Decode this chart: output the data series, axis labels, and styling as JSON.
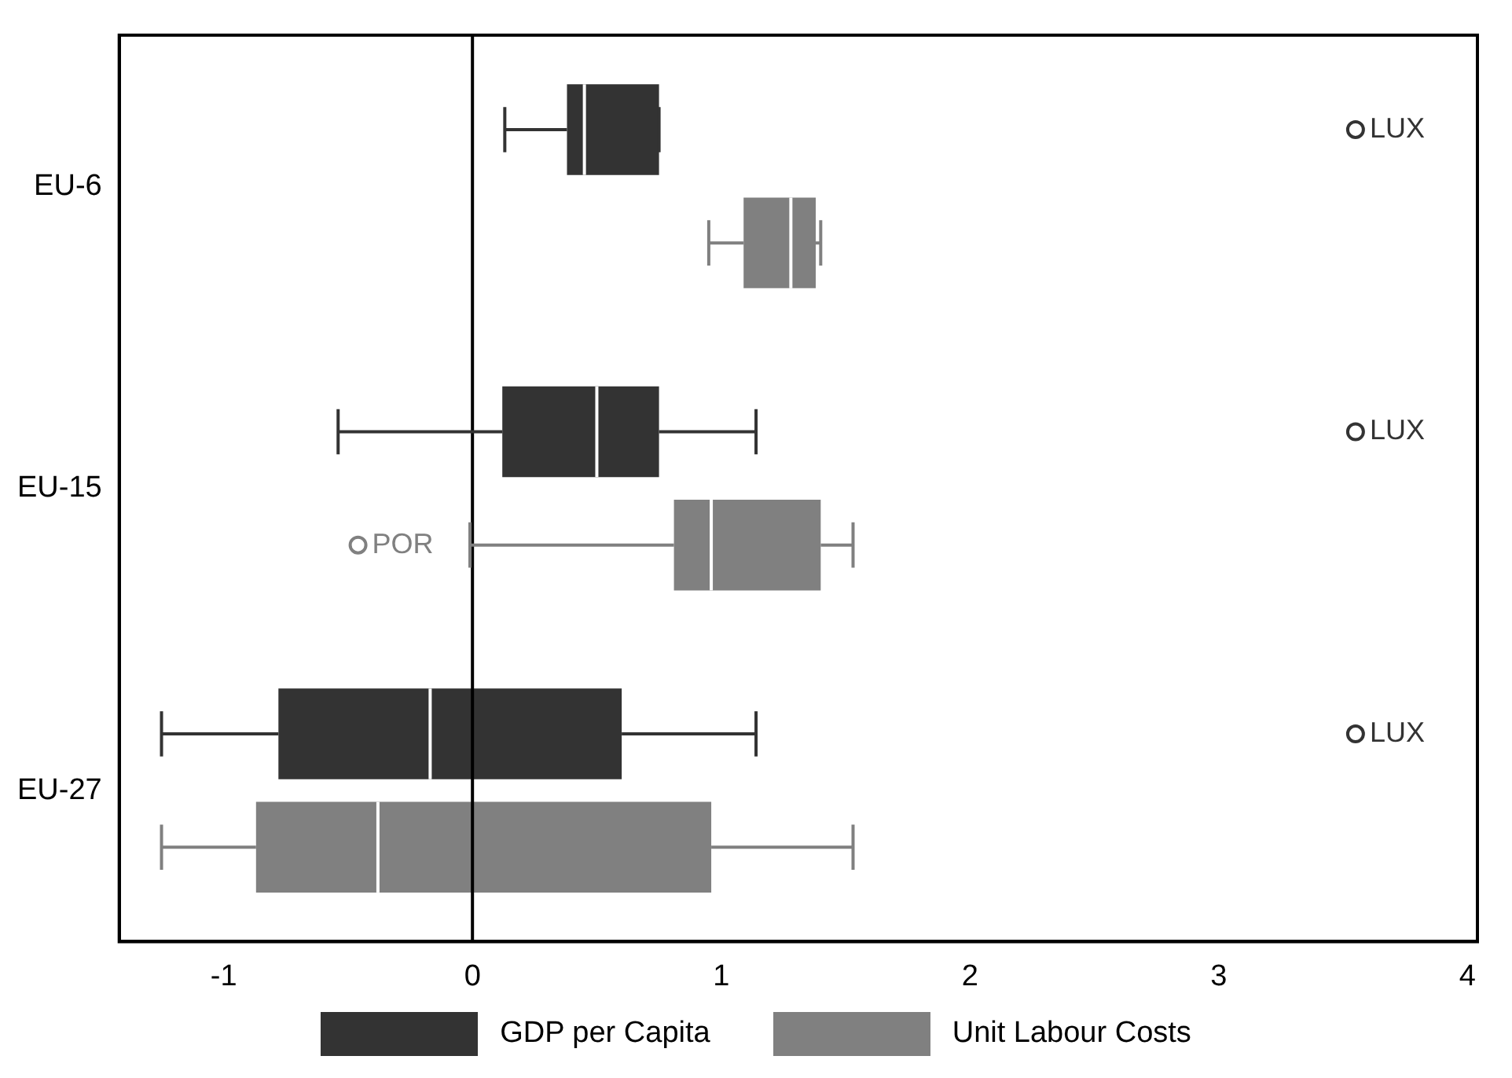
{
  "chart_data": {
    "type": "box",
    "orientation": "horizontal",
    "categories": [
      "EU-6",
      "EU-15",
      "EU-27"
    ],
    "series": [
      {
        "name": "GDP per Capita",
        "color": "#333333",
        "boxes": [
          {
            "low": 0.13,
            "q1": 0.38,
            "median": 0.45,
            "q3": 0.75,
            "high": 0.75,
            "outliers": [
              3.55
            ]
          },
          {
            "low": -0.54,
            "q1": 0.12,
            "median": 0.5,
            "q3": 0.75,
            "high": 1.14,
            "outliers": [
              3.55
            ]
          },
          {
            "low": -1.25,
            "q1": -0.78,
            "median": -0.17,
            "q3": 0.6,
            "high": 1.14,
            "outliers": [
              3.55
            ]
          }
        ]
      },
      {
        "name": "Unit Labour Costs",
        "color": "#808080",
        "boxes": [
          {
            "low": 0.95,
            "q1": 1.09,
            "median": 1.28,
            "q3": 1.38,
            "high": 1.4
          },
          {
            "low": -0.01,
            "q1": 0.81,
            "median": 0.96,
            "q3": 1.4,
            "high": 1.53,
            "outliers": [
              -0.46
            ]
          },
          {
            "low": -1.25,
            "q1": -0.87,
            "median": -0.38,
            "q3": 0.96,
            "high": 1.53
          }
        ]
      }
    ],
    "xlim": [
      -1.42,
      4.04
    ],
    "xticks": [
      -1,
      0,
      1,
      2,
      3,
      4
    ],
    "ref_lines": [
      {
        "axis": "x",
        "value": 0,
        "color": "#000000"
      }
    ],
    "annotations": [
      "LUX",
      "LUX",
      "LUX",
      "POR"
    ],
    "grid": false,
    "legend": "bottom"
  }
}
